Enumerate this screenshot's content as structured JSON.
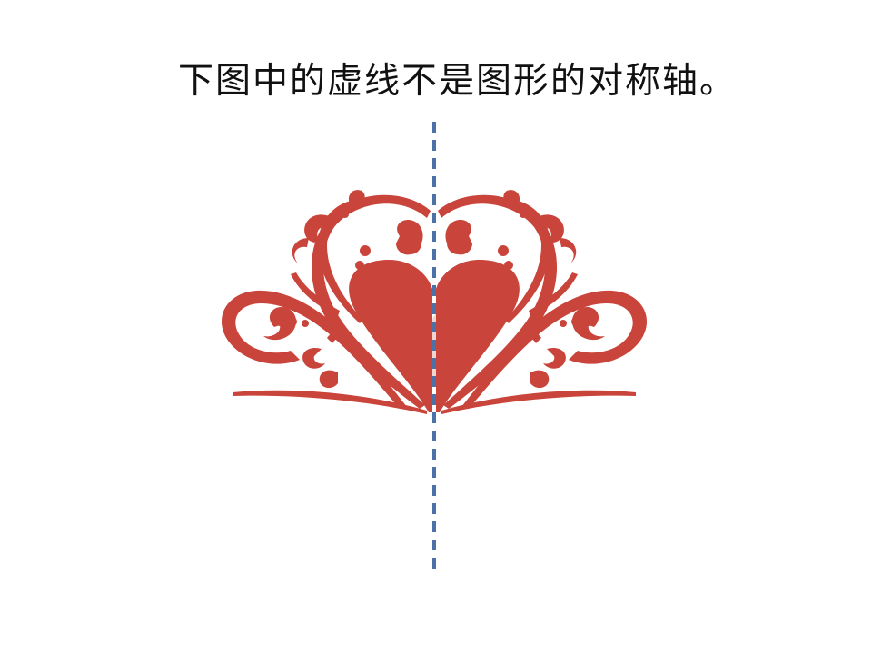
{
  "statement": "下图中的虚线不是图形的对称轴。",
  "figure": {
    "ornament_color": "#c9443a",
    "heart_color": "#efd7cf",
    "axis_color": "#4a72a8"
  }
}
